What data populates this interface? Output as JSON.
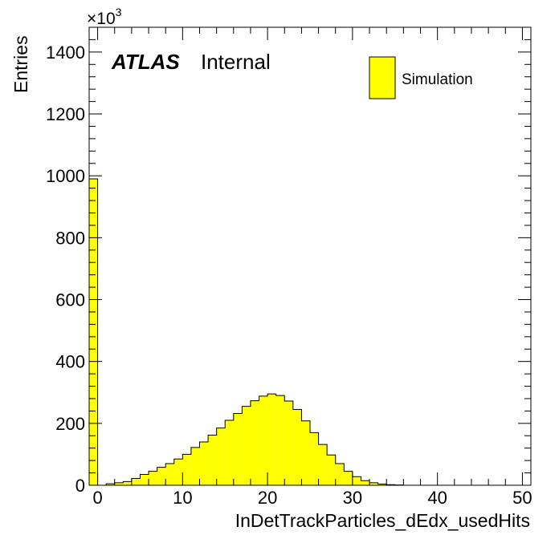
{
  "chart_data": {
    "type": "bar",
    "title": "",
    "xlabel": "InDetTrackParticles_dEdx_usedHits",
    "ylabel": "Entries",
    "y_multiplier": "×10",
    "y_multiplier_exp": "3",
    "xlim": [
      -1,
      51
    ],
    "ylim": [
      0,
      1480
    ],
    "x_ticks": [
      0,
      10,
      20,
      30,
      40,
      50
    ],
    "y_ticks": [
      0,
      200,
      400,
      600,
      800,
      1000,
      1200,
      1400
    ],
    "grid": false,
    "bin_edges_start": -1,
    "bin_width": 1,
    "series": [
      {
        "name": "Simulation",
        "color": "#ffff00",
        "values": [
          990,
          0,
          5,
          8,
          12,
          22,
          35,
          45,
          58,
          70,
          85,
          100,
          122,
          140,
          162,
          185,
          210,
          232,
          255,
          273,
          288,
          295,
          290,
          272,
          245,
          208,
          170,
          132,
          98,
          70,
          45,
          28,
          15,
          8,
          4,
          2,
          1,
          0,
          0,
          0,
          0,
          0,
          0,
          0,
          0,
          0,
          0,
          0,
          0,
          0,
          0,
          0
        ]
      }
    ],
    "legend": {
      "placement": "top-right",
      "entries": [
        "Simulation"
      ]
    },
    "annotations": {
      "atlas": "ATLAS",
      "status": "Internal"
    }
  }
}
